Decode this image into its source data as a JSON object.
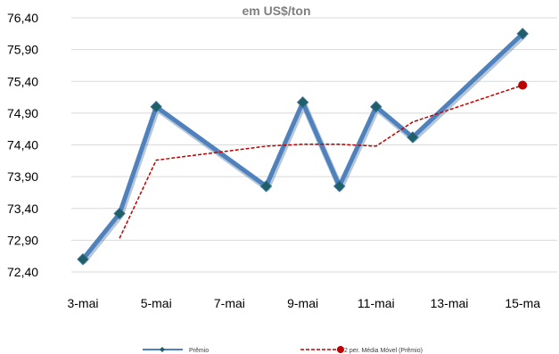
{
  "chart_data": {
    "type": "line",
    "title": "em US$/ton",
    "xlabel": "",
    "ylabel": "",
    "x_tick_labels": [
      "3-mai",
      "5-mai",
      "7-mai",
      "9-mai",
      "11-mai",
      "13-mai",
      "15-ma"
    ],
    "x_range": [
      2,
      15
    ],
    "y_tick_labels": [
      "72,40",
      "72,90",
      "73,40",
      "73,90",
      "74,40",
      "74,90",
      "75,40",
      "75,90",
      "76,40"
    ],
    "ylim": [
      72.4,
      76.4
    ],
    "grid": "horizontal",
    "legend_position": "bottom",
    "series": [
      {
        "name": "Prêmio",
        "style": "thick line with diamond markers",
        "color": "#4f81bd",
        "marker_color": "#1f5f66",
        "points": [
          {
            "x": 3,
            "y": 72.6
          },
          {
            "x": 4,
            "y": 73.32
          },
          {
            "x": 5,
            "y": 75.0
          },
          {
            "x": 8,
            "y": 73.75
          },
          {
            "x": 9,
            "y": 75.07
          },
          {
            "x": 10,
            "y": 73.75
          },
          {
            "x": 11,
            "y": 75.0
          },
          {
            "x": 12,
            "y": 74.52
          },
          {
            "x": 15,
            "y": 76.15
          }
        ]
      },
      {
        "name": "2 per. Média Móvel (Prêmio)",
        "style": "dashed trend line",
        "color": "#c00000",
        "points": [
          {
            "x": 4,
            "y": 72.93
          },
          {
            "x": 5,
            "y": 74.16
          },
          {
            "x": 8,
            "y": 74.38
          },
          {
            "x": 9,
            "y": 74.41
          },
          {
            "x": 10,
            "y": 74.41
          },
          {
            "x": 11,
            "y": 74.38
          },
          {
            "x": 12,
            "y": 74.76
          },
          {
            "x": 15,
            "y": 75.34
          }
        ]
      }
    ]
  }
}
